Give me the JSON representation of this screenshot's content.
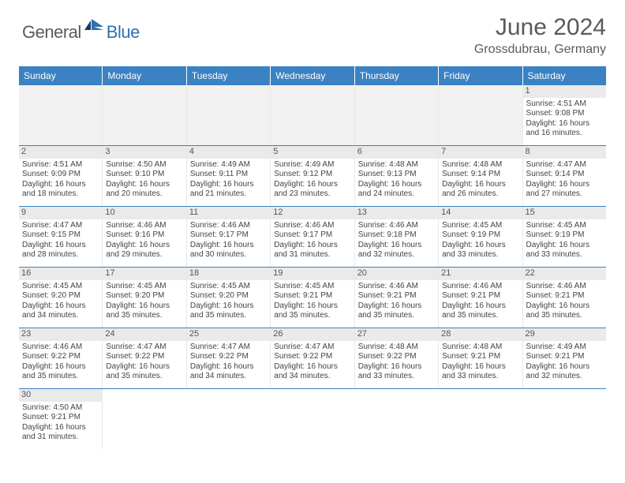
{
  "brand": {
    "part1": "General",
    "part2": "Blue"
  },
  "title": "June 2024",
  "location": "Grossdubrau, Germany",
  "colors": {
    "header_bg": "#3b82c4",
    "header_text": "#ffffff",
    "daynum_bg": "#eaeaea",
    "row_divider": "#3b82c4",
    "brand_gray": "#5a5a5a",
    "brand_blue": "#2f6fb0"
  },
  "weekdays": [
    "Sunday",
    "Monday",
    "Tuesday",
    "Wednesday",
    "Thursday",
    "Friday",
    "Saturday"
  ],
  "grid": [
    [
      {
        "empty": true
      },
      {
        "empty": true
      },
      {
        "empty": true
      },
      {
        "empty": true
      },
      {
        "empty": true
      },
      {
        "empty": true
      },
      {
        "day": "1",
        "sunrise": "Sunrise: 4:51 AM",
        "sunset": "Sunset: 9:08 PM",
        "dl1": "Daylight: 16 hours",
        "dl2": "and 16 minutes."
      }
    ],
    [
      {
        "day": "2",
        "sunrise": "Sunrise: 4:51 AM",
        "sunset": "Sunset: 9:09 PM",
        "dl1": "Daylight: 16 hours",
        "dl2": "and 18 minutes."
      },
      {
        "day": "3",
        "sunrise": "Sunrise: 4:50 AM",
        "sunset": "Sunset: 9:10 PM",
        "dl1": "Daylight: 16 hours",
        "dl2": "and 20 minutes."
      },
      {
        "day": "4",
        "sunrise": "Sunrise: 4:49 AM",
        "sunset": "Sunset: 9:11 PM",
        "dl1": "Daylight: 16 hours",
        "dl2": "and 21 minutes."
      },
      {
        "day": "5",
        "sunrise": "Sunrise: 4:49 AM",
        "sunset": "Sunset: 9:12 PM",
        "dl1": "Daylight: 16 hours",
        "dl2": "and 23 minutes."
      },
      {
        "day": "6",
        "sunrise": "Sunrise: 4:48 AM",
        "sunset": "Sunset: 9:13 PM",
        "dl1": "Daylight: 16 hours",
        "dl2": "and 24 minutes."
      },
      {
        "day": "7",
        "sunrise": "Sunrise: 4:48 AM",
        "sunset": "Sunset: 9:14 PM",
        "dl1": "Daylight: 16 hours",
        "dl2": "and 26 minutes."
      },
      {
        "day": "8",
        "sunrise": "Sunrise: 4:47 AM",
        "sunset": "Sunset: 9:14 PM",
        "dl1": "Daylight: 16 hours",
        "dl2": "and 27 minutes."
      }
    ],
    [
      {
        "day": "9",
        "sunrise": "Sunrise: 4:47 AM",
        "sunset": "Sunset: 9:15 PM",
        "dl1": "Daylight: 16 hours",
        "dl2": "and 28 minutes."
      },
      {
        "day": "10",
        "sunrise": "Sunrise: 4:46 AM",
        "sunset": "Sunset: 9:16 PM",
        "dl1": "Daylight: 16 hours",
        "dl2": "and 29 minutes."
      },
      {
        "day": "11",
        "sunrise": "Sunrise: 4:46 AM",
        "sunset": "Sunset: 9:17 PM",
        "dl1": "Daylight: 16 hours",
        "dl2": "and 30 minutes."
      },
      {
        "day": "12",
        "sunrise": "Sunrise: 4:46 AM",
        "sunset": "Sunset: 9:17 PM",
        "dl1": "Daylight: 16 hours",
        "dl2": "and 31 minutes."
      },
      {
        "day": "13",
        "sunrise": "Sunrise: 4:46 AM",
        "sunset": "Sunset: 9:18 PM",
        "dl1": "Daylight: 16 hours",
        "dl2": "and 32 minutes."
      },
      {
        "day": "14",
        "sunrise": "Sunrise: 4:45 AM",
        "sunset": "Sunset: 9:19 PM",
        "dl1": "Daylight: 16 hours",
        "dl2": "and 33 minutes."
      },
      {
        "day": "15",
        "sunrise": "Sunrise: 4:45 AM",
        "sunset": "Sunset: 9:19 PM",
        "dl1": "Daylight: 16 hours",
        "dl2": "and 33 minutes."
      }
    ],
    [
      {
        "day": "16",
        "sunrise": "Sunrise: 4:45 AM",
        "sunset": "Sunset: 9:20 PM",
        "dl1": "Daylight: 16 hours",
        "dl2": "and 34 minutes."
      },
      {
        "day": "17",
        "sunrise": "Sunrise: 4:45 AM",
        "sunset": "Sunset: 9:20 PM",
        "dl1": "Daylight: 16 hours",
        "dl2": "and 35 minutes."
      },
      {
        "day": "18",
        "sunrise": "Sunrise: 4:45 AM",
        "sunset": "Sunset: 9:20 PM",
        "dl1": "Daylight: 16 hours",
        "dl2": "and 35 minutes."
      },
      {
        "day": "19",
        "sunrise": "Sunrise: 4:45 AM",
        "sunset": "Sunset: 9:21 PM",
        "dl1": "Daylight: 16 hours",
        "dl2": "and 35 minutes."
      },
      {
        "day": "20",
        "sunrise": "Sunrise: 4:46 AM",
        "sunset": "Sunset: 9:21 PM",
        "dl1": "Daylight: 16 hours",
        "dl2": "and 35 minutes."
      },
      {
        "day": "21",
        "sunrise": "Sunrise: 4:46 AM",
        "sunset": "Sunset: 9:21 PM",
        "dl1": "Daylight: 16 hours",
        "dl2": "and 35 minutes."
      },
      {
        "day": "22",
        "sunrise": "Sunrise: 4:46 AM",
        "sunset": "Sunset: 9:21 PM",
        "dl1": "Daylight: 16 hours",
        "dl2": "and 35 minutes."
      }
    ],
    [
      {
        "day": "23",
        "sunrise": "Sunrise: 4:46 AM",
        "sunset": "Sunset: 9:22 PM",
        "dl1": "Daylight: 16 hours",
        "dl2": "and 35 minutes."
      },
      {
        "day": "24",
        "sunrise": "Sunrise: 4:47 AM",
        "sunset": "Sunset: 9:22 PM",
        "dl1": "Daylight: 16 hours",
        "dl2": "and 35 minutes."
      },
      {
        "day": "25",
        "sunrise": "Sunrise: 4:47 AM",
        "sunset": "Sunset: 9:22 PM",
        "dl1": "Daylight: 16 hours",
        "dl2": "and 34 minutes."
      },
      {
        "day": "26",
        "sunrise": "Sunrise: 4:47 AM",
        "sunset": "Sunset: 9:22 PM",
        "dl1": "Daylight: 16 hours",
        "dl2": "and 34 minutes."
      },
      {
        "day": "27",
        "sunrise": "Sunrise: 4:48 AM",
        "sunset": "Sunset: 9:22 PM",
        "dl1": "Daylight: 16 hours",
        "dl2": "and 33 minutes."
      },
      {
        "day": "28",
        "sunrise": "Sunrise: 4:48 AM",
        "sunset": "Sunset: 9:21 PM",
        "dl1": "Daylight: 16 hours",
        "dl2": "and 33 minutes."
      },
      {
        "day": "29",
        "sunrise": "Sunrise: 4:49 AM",
        "sunset": "Sunset: 9:21 PM",
        "dl1": "Daylight: 16 hours",
        "dl2": "and 32 minutes."
      }
    ],
    [
      {
        "day": "30",
        "sunrise": "Sunrise: 4:50 AM",
        "sunset": "Sunset: 9:21 PM",
        "dl1": "Daylight: 16 hours",
        "dl2": "and 31 minutes."
      },
      {
        "empty": true
      },
      {
        "empty": true
      },
      {
        "empty": true
      },
      {
        "empty": true
      },
      {
        "empty": true
      },
      {
        "empty": true
      }
    ]
  ]
}
